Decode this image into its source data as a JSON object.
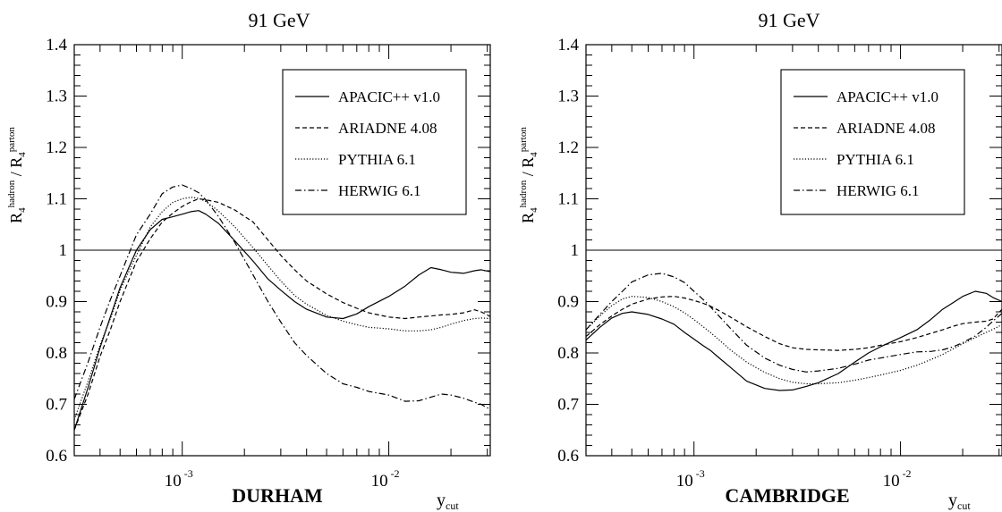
{
  "figure": {
    "background": "#ffffff",
    "ink": "#000000"
  },
  "chart_data": [
    {
      "type": "line",
      "title": "91 GeV",
      "panel_label": "DURHAM",
      "xlabel": {
        "base": "y",
        "sub": "cut"
      },
      "ylabel": {
        "r1": "R",
        "r1_sub": "4",
        "r1_sup": "hadron",
        "sep": " / ",
        "r2": "R",
        "r2_sub": "4",
        "r2_sup": "parton"
      },
      "x_scale": "log",
      "xlim": [
        0.0003,
        0.031
      ],
      "ylim": [
        0.6,
        1.4
      ],
      "y_ticks": [
        0.6,
        0.7,
        0.8,
        0.9,
        1,
        1.1,
        1.2,
        1.3,
        1.4
      ],
      "y_tick_labels": [
        "0.6",
        "0.7",
        "0.8",
        "0.9",
        "1",
        "1.1",
        "1.2",
        "1.3",
        "1.4"
      ],
      "x_major_ticks": [
        {
          "value": 0.001,
          "base": "10",
          "exp": "-3"
        },
        {
          "value": 0.01,
          "base": "10",
          "exp": "-2"
        }
      ],
      "reference_line": 1,
      "grid": false,
      "legend_position": "top-right",
      "series": [
        {
          "name": "APACIC++ v1.0",
          "style": "solid",
          "x": [
            0.0003,
            0.00035,
            0.0004,
            0.00045,
            0.0005,
            0.0006,
            0.0007,
            0.0008,
            0.0009,
            0.001,
            0.0011,
            0.0012,
            0.0013,
            0.0015,
            0.0018,
            0.0022,
            0.0026,
            0.003,
            0.0035,
            0.004,
            0.005,
            0.006,
            0.007,
            0.008,
            0.01,
            0.012,
            0.014,
            0.016,
            0.018,
            0.02,
            0.023,
            0.026,
            0.028,
            0.031
          ],
          "y": [
            0.65,
            0.733,
            0.81,
            0.872,
            0.927,
            1.0,
            1.04,
            1.06,
            1.065,
            1.07,
            1.075,
            1.077,
            1.07,
            1.052,
            1.018,
            0.979,
            0.944,
            0.922,
            0.9,
            0.885,
            0.87,
            0.867,
            0.876,
            0.89,
            0.91,
            0.93,
            0.952,
            0.966,
            0.962,
            0.957,
            0.955,
            0.96,
            0.962,
            0.958
          ]
        },
        {
          "name": "ARIADNE 4.08",
          "style": "dashed",
          "x": [
            0.0003,
            0.00035,
            0.0004,
            0.00045,
            0.0005,
            0.0006,
            0.0007,
            0.0008,
            0.0009,
            0.001,
            0.0011,
            0.0012,
            0.0013,
            0.0015,
            0.0018,
            0.0022,
            0.0026,
            0.003,
            0.0035,
            0.004,
            0.005,
            0.006,
            0.007,
            0.008,
            0.01,
            0.012,
            0.014,
            0.016,
            0.018,
            0.02,
            0.023,
            0.026,
            0.028,
            0.031
          ],
          "y": [
            0.65,
            0.72,
            0.793,
            0.847,
            0.9,
            0.978,
            1.022,
            1.055,
            1.072,
            1.085,
            1.094,
            1.1,
            1.098,
            1.093,
            1.078,
            1.055,
            1.02,
            0.99,
            0.962,
            0.94,
            0.915,
            0.898,
            0.887,
            0.878,
            0.87,
            0.867,
            0.87,
            0.872,
            0.874,
            0.875,
            0.878,
            0.884,
            0.88,
            0.871
          ]
        },
        {
          "name": "PYTHIA 6.1",
          "style": "dotted",
          "x": [
            0.0003,
            0.00035,
            0.0004,
            0.00045,
            0.0005,
            0.0006,
            0.0007,
            0.0008,
            0.0009,
            0.001,
            0.0011,
            0.0012,
            0.0013,
            0.0015,
            0.0018,
            0.0022,
            0.0026,
            0.003,
            0.0035,
            0.004,
            0.005,
            0.006,
            0.007,
            0.008,
            0.01,
            0.012,
            0.014,
            0.016,
            0.018,
            0.02,
            0.023,
            0.026,
            0.028,
            0.031
          ],
          "y": [
            0.67,
            0.745,
            0.815,
            0.868,
            0.922,
            0.99,
            1.045,
            1.075,
            1.093,
            1.1,
            1.103,
            1.101,
            1.095,
            1.076,
            1.045,
            1.005,
            0.97,
            0.94,
            0.912,
            0.895,
            0.873,
            0.862,
            0.855,
            0.85,
            0.847,
            0.843,
            0.843,
            0.845,
            0.85,
            0.856,
            0.863,
            0.867,
            0.868,
            0.867
          ]
        },
        {
          "name": "HERWIG 6.1",
          "style": "dashdot",
          "x": [
            0.0003,
            0.00035,
            0.0004,
            0.00045,
            0.0005,
            0.0006,
            0.0007,
            0.0008,
            0.0009,
            0.001,
            0.0011,
            0.0012,
            0.0013,
            0.0015,
            0.0018,
            0.0022,
            0.0026,
            0.003,
            0.0035,
            0.004,
            0.005,
            0.006,
            0.007,
            0.008,
            0.01,
            0.012,
            0.014,
            0.016,
            0.018,
            0.02,
            0.023,
            0.026,
            0.028,
            0.031
          ],
          "y": [
            0.71,
            0.782,
            0.85,
            0.905,
            0.95,
            1.03,
            1.07,
            1.11,
            1.123,
            1.127,
            1.12,
            1.112,
            1.098,
            1.065,
            1.015,
            0.952,
            0.9,
            0.86,
            0.82,
            0.795,
            0.76,
            0.74,
            0.733,
            0.725,
            0.718,
            0.706,
            0.707,
            0.714,
            0.72,
            0.718,
            0.712,
            0.704,
            0.7,
            0.69
          ]
        }
      ]
    },
    {
      "type": "line",
      "title": "91 GeV",
      "panel_label": "CAMBRIDGE",
      "xlabel": {
        "base": "y",
        "sub": "cut"
      },
      "ylabel": {
        "r1": "R",
        "r1_sub": "4",
        "r1_sup": "hadron",
        "sep": " / ",
        "r2": "R",
        "r2_sub": "4",
        "r2_sup": "parton"
      },
      "x_scale": "log",
      "xlim": [
        0.0003,
        0.031
      ],
      "ylim": [
        0.6,
        1.4
      ],
      "y_ticks": [
        0.6,
        0.7,
        0.8,
        0.9,
        1,
        1.1,
        1.2,
        1.3,
        1.4
      ],
      "y_tick_labels": [
        "0.6",
        "0.7",
        "0.8",
        "0.9",
        "1",
        "1.1",
        "1.2",
        "1.3",
        "1.4"
      ],
      "x_major_ticks": [
        {
          "value": 0.001,
          "base": "10",
          "exp": "-3"
        },
        {
          "value": 0.01,
          "base": "10",
          "exp": "-2"
        }
      ],
      "reference_line": 1,
      "grid": false,
      "legend_position": "top-right",
      "series": [
        {
          "name": "APACIC++ v1.0",
          "style": "solid",
          "x": [
            0.0003,
            0.00035,
            0.0004,
            0.00045,
            0.0005,
            0.0006,
            0.0007,
            0.0008,
            0.0009,
            0.001,
            0.0011,
            0.0012,
            0.0013,
            0.0015,
            0.0018,
            0.0022,
            0.0026,
            0.003,
            0.0035,
            0.004,
            0.005,
            0.006,
            0.007,
            0.008,
            0.01,
            0.012,
            0.014,
            0.016,
            0.018,
            0.02,
            0.023,
            0.026,
            0.028,
            0.031
          ],
          "y": [
            0.825,
            0.85,
            0.868,
            0.877,
            0.88,
            0.875,
            0.866,
            0.856,
            0.84,
            0.827,
            0.815,
            0.805,
            0.793,
            0.772,
            0.745,
            0.731,
            0.727,
            0.728,
            0.735,
            0.742,
            0.76,
            0.782,
            0.8,
            0.812,
            0.83,
            0.845,
            0.865,
            0.885,
            0.898,
            0.91,
            0.92,
            0.916,
            0.908,
            0.9
          ]
        },
        {
          "name": "ARIADNE 4.08",
          "style": "dashed",
          "x": [
            0.0003,
            0.00035,
            0.0004,
            0.00045,
            0.0005,
            0.0006,
            0.0007,
            0.0008,
            0.0009,
            0.001,
            0.0011,
            0.0012,
            0.0013,
            0.0015,
            0.0018,
            0.0022,
            0.0026,
            0.003,
            0.0035,
            0.004,
            0.005,
            0.006,
            0.007,
            0.008,
            0.01,
            0.012,
            0.014,
            0.016,
            0.018,
            0.02,
            0.023,
            0.026,
            0.028,
            0.031
          ],
          "y": [
            0.832,
            0.855,
            0.872,
            0.885,
            0.895,
            0.905,
            0.909,
            0.91,
            0.907,
            0.902,
            0.897,
            0.891,
            0.884,
            0.87,
            0.851,
            0.832,
            0.818,
            0.81,
            0.807,
            0.806,
            0.805,
            0.807,
            0.81,
            0.815,
            0.822,
            0.83,
            0.838,
            0.845,
            0.852,
            0.857,
            0.86,
            0.862,
            0.866,
            0.885
          ]
        },
        {
          "name": "PYTHIA 6.1",
          "style": "dotted",
          "x": [
            0.0003,
            0.00035,
            0.0004,
            0.00045,
            0.0005,
            0.0006,
            0.0007,
            0.0008,
            0.0009,
            0.001,
            0.0011,
            0.0012,
            0.0013,
            0.0015,
            0.0018,
            0.0022,
            0.0026,
            0.003,
            0.0035,
            0.004,
            0.005,
            0.006,
            0.007,
            0.008,
            0.01,
            0.012,
            0.014,
            0.016,
            0.018,
            0.02,
            0.023,
            0.026,
            0.028,
            0.031
          ],
          "y": [
            0.845,
            0.872,
            0.892,
            0.905,
            0.91,
            0.908,
            0.9,
            0.89,
            0.878,
            0.865,
            0.852,
            0.84,
            0.828,
            0.806,
            0.782,
            0.762,
            0.75,
            0.743,
            0.74,
            0.74,
            0.742,
            0.747,
            0.752,
            0.757,
            0.766,
            0.776,
            0.787,
            0.797,
            0.808,
            0.818,
            0.83,
            0.84,
            0.846,
            0.855
          ]
        },
        {
          "name": "HERWIG 6.1",
          "style": "dashdot",
          "x": [
            0.0003,
            0.00035,
            0.0004,
            0.00045,
            0.0005,
            0.0006,
            0.0007,
            0.0008,
            0.0009,
            0.001,
            0.0011,
            0.0012,
            0.0013,
            0.0015,
            0.0018,
            0.0022,
            0.0026,
            0.003,
            0.0035,
            0.004,
            0.005,
            0.006,
            0.007,
            0.008,
            0.01,
            0.012,
            0.014,
            0.016,
            0.018,
            0.02,
            0.023,
            0.026,
            0.028,
            0.031
          ],
          "y": [
            0.845,
            0.875,
            0.9,
            0.92,
            0.938,
            0.952,
            0.955,
            0.948,
            0.937,
            0.92,
            0.905,
            0.89,
            0.875,
            0.848,
            0.815,
            0.79,
            0.776,
            0.768,
            0.763,
            0.765,
            0.77,
            0.778,
            0.786,
            0.79,
            0.797,
            0.802,
            0.803,
            0.806,
            0.812,
            0.82,
            0.833,
            0.85,
            0.862,
            0.877
          ]
        }
      ]
    }
  ]
}
